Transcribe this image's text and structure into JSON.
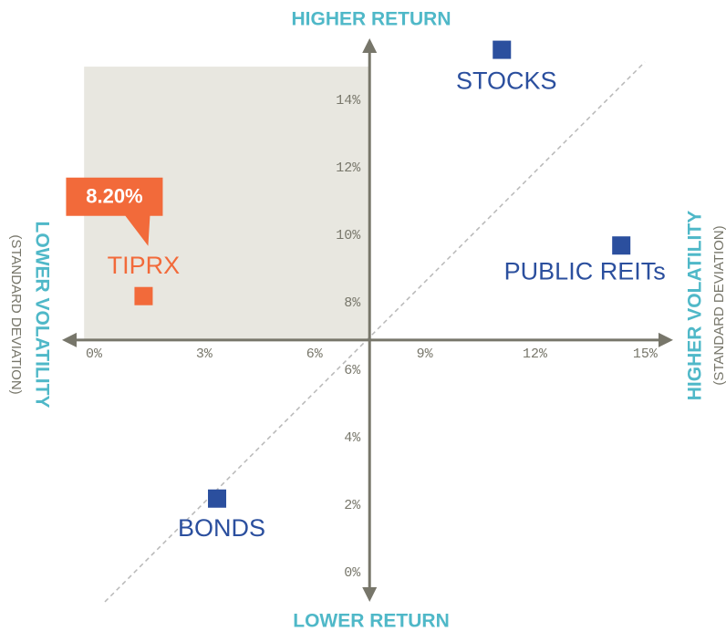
{
  "chart_data": {
    "type": "scatter",
    "top_label": "HIGHER RETURN",
    "bottom_label": "LOWER RETURN",
    "left_label": "LOWER VOLATILITY",
    "left_sublabel": "(STANDARD DEVIATION)",
    "right_label": "HIGHER VOLATILITY",
    "right_sublabel": "(STANDARD DEVIATION)",
    "xlim": [
      -0.87,
      15.76
    ],
    "ylim": [
      -0.86,
      15.84
    ],
    "origin": {
      "x": 7.5,
      "y": 6.9
    },
    "highlight": {
      "x": [
        -0.27,
        7.5
      ],
      "y": [
        6.9,
        15
      ]
    },
    "xticks": [
      {
        "value": 0,
        "label": "0%"
      },
      {
        "value": 3,
        "label": "3%"
      },
      {
        "value": 6,
        "label": "6%"
      },
      {
        "value": 9,
        "label": "9%"
      },
      {
        "value": 12,
        "label": "12%"
      },
      {
        "value": 15,
        "label": "15%"
      }
    ],
    "yticks": [
      {
        "value": 0,
        "label": "0%"
      },
      {
        "value": 2,
        "label": "2%"
      },
      {
        "value": 4,
        "label": "4%"
      },
      {
        "value": 6,
        "label": "6%"
      },
      {
        "value": 8,
        "label": "8%"
      },
      {
        "value": 10,
        "label": "10%"
      },
      {
        "value": 12,
        "label": "12%"
      },
      {
        "value": 14,
        "label": "14%"
      }
    ],
    "points": [
      {
        "name": "STOCKS",
        "x": 11.1,
        "y": 15.5,
        "color": "#2b4f9e"
      },
      {
        "name": "PUBLIC REITs",
        "x": 14.35,
        "y": 9.7,
        "color": "#2b4f9e"
      },
      {
        "name": "BONDS",
        "x": 3.35,
        "y": 2.2,
        "color": "#2b4f9e"
      },
      {
        "name": "TIPRX",
        "x": 1.35,
        "y": 8.2,
        "value_label": "8.20%",
        "color": "#f26a3a"
      }
    ]
  }
}
